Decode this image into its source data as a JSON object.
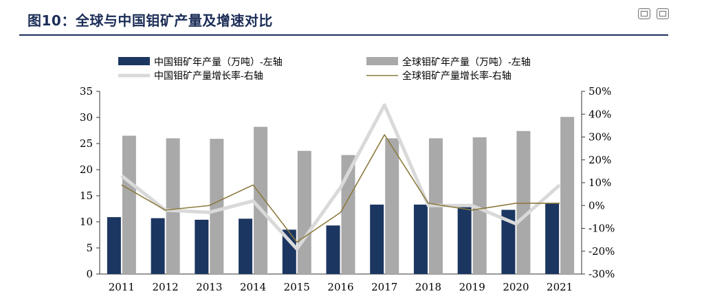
{
  "header": {
    "title": "图10：全球与中国钼矿产量及增速对比",
    "controls": [
      {
        "icon": "minimize-icon"
      },
      {
        "icon": "restore-icon"
      }
    ]
  },
  "chart_data": {
    "type": "bar",
    "categories": [
      "2011",
      "2012",
      "2013",
      "2014",
      "2015",
      "2016",
      "2017",
      "2018",
      "2019",
      "2020",
      "2021"
    ],
    "series": [
      {
        "name": "中国钼矿年产量（万吨）-左轴",
        "kind": "bar",
        "axis": "left",
        "color": "#1b3660",
        "values": [
          10.9,
          10.7,
          10.4,
          10.6,
          8.5,
          9.3,
          13.3,
          13.3,
          13.0,
          12.3,
          13.5
        ]
      },
      {
        "name": "全球钼矿年产量（万吨）-左轴",
        "kind": "bar",
        "axis": "left",
        "color": "#a9a9a9",
        "values": [
          26.5,
          26.0,
          25.9,
          28.2,
          23.6,
          22.8,
          26.0,
          26.0,
          26.2,
          27.4,
          30.1
        ]
      },
      {
        "name": "中国钼矿产量增长率-右轴",
        "kind": "line",
        "axis": "right",
        "color": "#d9d9d9",
        "values": [
          13,
          -2,
          -3,
          2,
          -19,
          8,
          44,
          0,
          0,
          -8,
          9
        ]
      },
      {
        "name": "全球钼矿产量增长率-右轴",
        "kind": "line",
        "axis": "right",
        "color": "#8c7a3f",
        "values": [
          9,
          -2,
          0,
          9,
          -16,
          -3,
          31,
          1,
          -2,
          1,
          1
        ]
      }
    ],
    "left_axis": {
      "ylim": [
        0,
        35
      ],
      "ticks": [
        "0",
        "5",
        "10",
        "15",
        "20",
        "25",
        "30",
        "35"
      ]
    },
    "right_axis": {
      "ylim": [
        -30,
        50
      ],
      "ticks": [
        "-30%",
        "-20%",
        "-10%",
        "0%",
        "10%",
        "20%",
        "30%",
        "40%",
        "50%"
      ]
    },
    "legend_position": "top",
    "grid": false
  }
}
